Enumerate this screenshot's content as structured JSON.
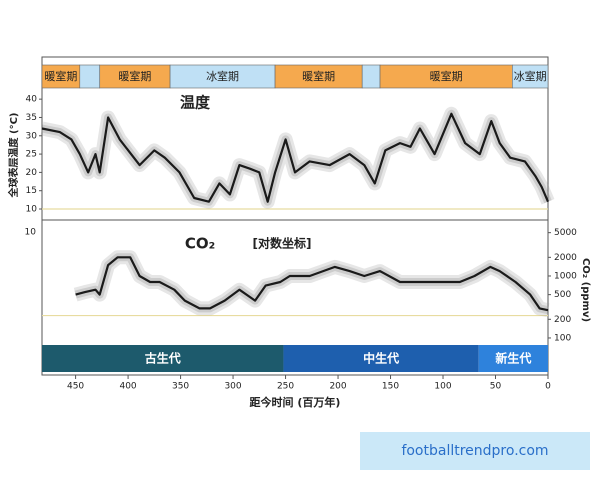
{
  "chart_data": [
    {
      "type": "line",
      "title": "温度",
      "ylabel": "全球表层温度 (°C)",
      "color": "#1a1a1a",
      "band_color": "#9a9a9a",
      "xlim": [
        482,
        0
      ],
      "ylim": [
        7,
        42.5
      ],
      "yticks": [
        10,
        15,
        20,
        25,
        30,
        35,
        40
      ],
      "yaxis_side": "left",
      "log": false,
      "reference_line": 10,
      "reference_color": "#e8dca0",
      "x": [
        482,
        465,
        454,
        446,
        438,
        431,
        427,
        419,
        408,
        389,
        375,
        365,
        351,
        337,
        323,
        313,
        303,
        294,
        284,
        275,
        267,
        260,
        250,
        241,
        227,
        208,
        189,
        175,
        165,
        155,
        141,
        131,
        122,
        108,
        92,
        79,
        65,
        54,
        46,
        36,
        22,
        12,
        6,
        0
      ],
      "values": [
        32,
        31,
        29,
        25,
        20,
        25,
        20,
        35,
        29,
        22,
        26,
        24,
        20,
        13,
        12,
        17,
        14,
        22,
        21,
        20,
        12,
        20,
        29,
        20,
        23,
        22,
        25,
        22,
        17,
        26,
        28,
        27,
        32,
        25,
        36,
        28,
        25,
        34,
        28,
        24,
        23,
        19,
        16,
        12
      ]
    },
    {
      "type": "line",
      "title": "CO₂",
      "subtitle": "[对数坐标]",
      "ylabel": "CO₂ (ppmv)",
      "left_tick_label": "10",
      "color": "#1a1a1a",
      "band_color": "#9a9a9a",
      "xlim": [
        482,
        0
      ],
      "ylim": [
        77,
        7430
      ],
      "log": true,
      "yticks": [
        100,
        200,
        500,
        1000,
        2000,
        5000
      ],
      "yaxis_side": "right",
      "reference_line": 230,
      "reference_color": "#e8dca0",
      "xlabel": "距今时间 (百万年)",
      "xticks": [
        450,
        400,
        350,
        300,
        250,
        200,
        150,
        100,
        50,
        0
      ],
      "x": [
        450,
        441,
        431,
        427,
        419,
        410,
        398,
        389,
        379,
        370,
        356,
        346,
        332,
        322,
        308,
        294,
        279,
        269,
        255,
        246,
        227,
        203,
        189,
        175,
        160,
        141,
        113,
        84,
        70,
        55,
        46,
        31,
        17,
        8,
        0
      ],
      "values": [
        500,
        550,
        600,
        500,
        1500,
        2000,
        2000,
        1000,
        800,
        800,
        600,
        400,
        300,
        300,
        400,
        600,
        400,
        700,
        800,
        1000,
        1000,
        1400,
        1200,
        1000,
        1200,
        800,
        800,
        800,
        1000,
        1400,
        1200,
        800,
        500,
        300,
        280
      ]
    }
  ],
  "periods": [
    {
      "label": "暖室期",
      "start": 482,
      "end": 446,
      "color": "#f5a94e"
    },
    {
      "label": null,
      "start": 446,
      "end": 427,
      "color": "#bfe0f5"
    },
    {
      "label": "暖室期",
      "start": 427,
      "end": 360,
      "color": "#f5a94e"
    },
    {
      "label": "冰室期",
      "start": 360,
      "end": 260,
      "color": "#bfe0f5"
    },
    {
      "label": "暖室期",
      "start": 260,
      "end": 177,
      "color": "#f5a94e"
    },
    {
      "label": null,
      "start": 177,
      "end": 160,
      "color": "#bfe0f5"
    },
    {
      "label": "暖室期",
      "start": 160,
      "end": 34,
      "color": "#f5a94e"
    },
    {
      "label": "冰室期",
      "start": 34,
      "end": 0,
      "color": "#bfe0f5"
    }
  ],
  "eras": [
    {
      "label": "古生代",
      "start": 482,
      "end": 252,
      "color": "#1d5a6c"
    },
    {
      "label": "中生代",
      "start": 252,
      "end": 66,
      "color": "#1e5fae"
    },
    {
      "label": "新生代",
      "start": 66,
      "end": 0,
      "color": "#2e82dc"
    }
  ],
  "watermark": "footballtrendpro.com"
}
